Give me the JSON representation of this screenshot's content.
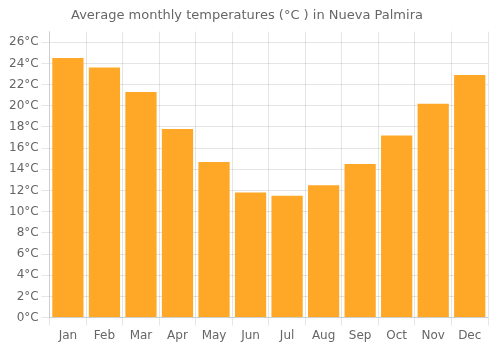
{
  "chart_data": {
    "type": "bar",
    "title": "Average monthly temperatures (°C ) in Nueva Palmira",
    "categories": [
      "Jan",
      "Feb",
      "Mar",
      "Apr",
      "May",
      "Jun",
      "Jul",
      "Aug",
      "Sep",
      "Oct",
      "Nov",
      "Dec"
    ],
    "values": [
      24.5,
      23.6,
      21.3,
      17.8,
      14.7,
      11.8,
      11.5,
      12.5,
      14.5,
      17.2,
      20.2,
      22.9
    ],
    "color": "#FFA726",
    "ylim": [
      0,
      27
    ],
    "yticks": [
      {
        "value": 0,
        "label": "0°C"
      },
      {
        "value": 2,
        "label": "2°C"
      },
      {
        "value": 4,
        "label": "4°C"
      },
      {
        "value": 6,
        "label": "6°C"
      },
      {
        "value": 8,
        "label": "8°C"
      },
      {
        "value": 10,
        "label": "10°C"
      },
      {
        "value": 12,
        "label": "12°C"
      },
      {
        "value": 14,
        "label": "14°C"
      },
      {
        "value": 16,
        "label": "16°C"
      },
      {
        "value": 18,
        "label": "18°C"
      },
      {
        "value": 20,
        "label": "20°C"
      },
      {
        "value": 22,
        "label": "22°C"
      },
      {
        "value": 24,
        "label": "24°C"
      },
      {
        "value": 26,
        "label": "26°C"
      }
    ],
    "grid": true
  }
}
